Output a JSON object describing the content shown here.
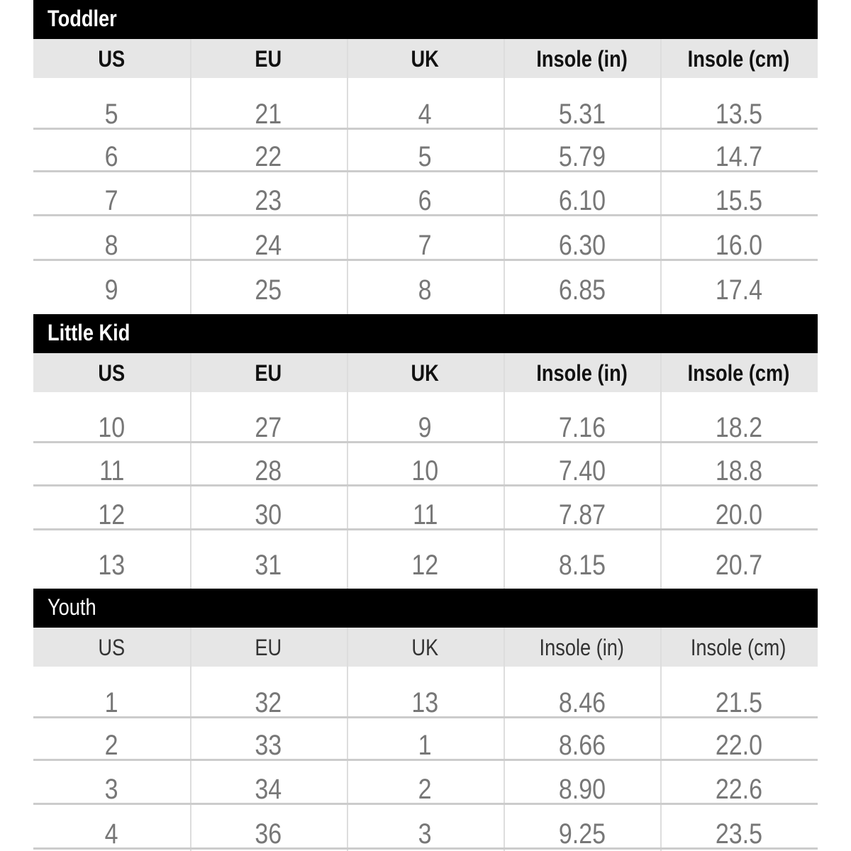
{
  "columns": [
    "US",
    "EU",
    "UK",
    "Insole (in)",
    "Insole (cm)"
  ],
  "sections": [
    {
      "title": "Toddler",
      "rows": [
        [
          "5",
          "21",
          "4",
          "5.31",
          "13.5"
        ],
        [
          "6",
          "22",
          "5",
          "5.79",
          "14.7"
        ],
        [
          "7",
          "23",
          "6",
          "6.10",
          "15.5"
        ],
        [
          "8",
          "24",
          "7",
          "6.30",
          "16.0"
        ],
        [
          "9",
          "25",
          "8",
          "6.85",
          "17.4"
        ]
      ]
    },
    {
      "title": "Little Kid",
      "rows": [
        [
          "10",
          "27",
          "9",
          "7.16",
          "18.2"
        ],
        [
          "11",
          "28",
          "10",
          "7.40",
          "18.8"
        ],
        [
          "12",
          "30",
          "11",
          "7.87",
          "20.0"
        ],
        [
          "13",
          "31",
          "12",
          "8.15",
          "20.7"
        ]
      ]
    },
    {
      "title": "Youth",
      "rows": [
        [
          "1",
          "32",
          "13",
          "8.46",
          "21.5"
        ],
        [
          "2",
          "33",
          "1",
          "8.66",
          "22.0"
        ],
        [
          "3",
          "34",
          "2",
          "8.90",
          "22.6"
        ],
        [
          "4",
          "36",
          "3",
          "9.25",
          "23.5"
        ]
      ]
    }
  ]
}
